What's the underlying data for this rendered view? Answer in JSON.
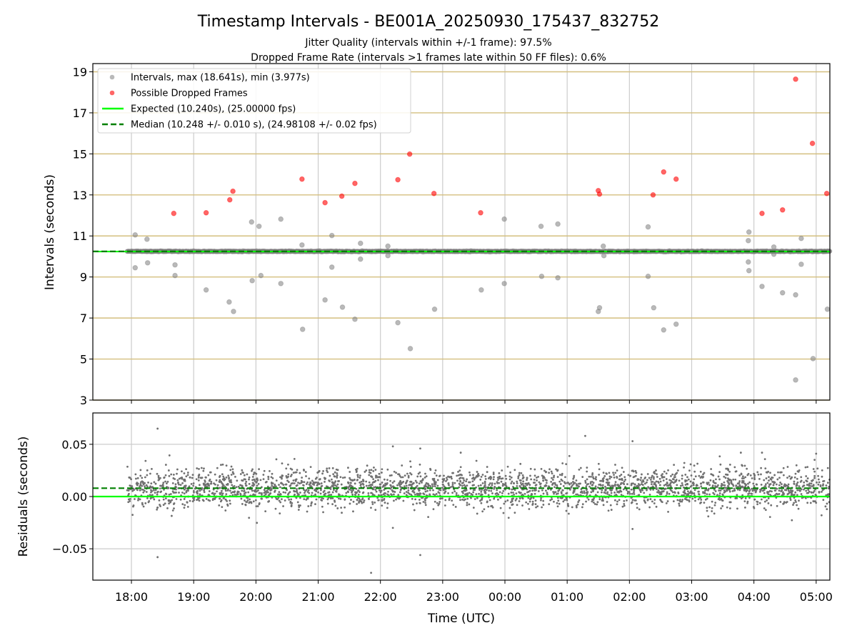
{
  "chart_data": [
    {
      "type": "scatter",
      "title": "Timestamp Intervals - BE001A_20250930_175437_832752",
      "subtitle_lines": [
        "Jitter Quality (intervals within +/-1 frame): 97.5%",
        "Dropped Frame Rate (intervals >1 frames late within 50 FF files): 0.6%"
      ],
      "xlabel": "",
      "ylabel": "Intervals (seconds)",
      "x_units": "hours since 18:00 UTC",
      "xlim": [
        -0.62,
        11.22
      ],
      "ylim": [
        3,
        19.4
      ],
      "yticks": [
        3,
        5,
        7,
        9,
        11,
        13,
        15,
        17,
        19
      ],
      "xticks": [
        0,
        1,
        2,
        3,
        4,
        5,
        6,
        7,
        8,
        9,
        10,
        11
      ],
      "xtick_labels": [
        "18:00",
        "19:00",
        "20:00",
        "21:00",
        "22:00",
        "23:00",
        "00:00",
        "01:00",
        "02:00",
        "03:00",
        "04:00",
        "05:00"
      ],
      "grid": true,
      "legend_position": "top-left",
      "legend": [
        "Intervals, max (18.641s), min (3.977s)",
        "Possible Dropped Frames",
        "Expected (10.240s), (25.00000 fps)",
        "Median (10.248 +/- 0.010 s), (24.98108 +/- 0.02 fps)"
      ],
      "expected": 10.24,
      "median": 10.248,
      "colors": {
        "intervals": "#808080",
        "dropped": "#ff0000",
        "expected": "#00ff00",
        "median": "#008000",
        "hgrid": "#d4bf7f",
        "vgrid": "#cccccc"
      },
      "dense_band": {
        "x_start": -0.07,
        "x_end": 11.22,
        "center": 10.248,
        "spread": 0.012,
        "count": 2200
      },
      "dropped_frames": [
        [
          0.68,
          12.1
        ],
        [
          1.2,
          12.13
        ],
        [
          1.58,
          12.76
        ],
        [
          1.63,
          13.18
        ],
        [
          2.74,
          13.77
        ],
        [
          3.11,
          12.62
        ],
        [
          3.38,
          12.94
        ],
        [
          3.59,
          13.56
        ],
        [
          4.28,
          13.74
        ],
        [
          4.47,
          14.99
        ],
        [
          4.86,
          13.07
        ],
        [
          5.61,
          12.13
        ],
        [
          7.5,
          13.21
        ],
        [
          7.52,
          13.04
        ],
        [
          8.38,
          13.0
        ],
        [
          8.55,
          14.12
        ],
        [
          8.75,
          13.77
        ],
        [
          10.13,
          12.1
        ],
        [
          10.46,
          12.27
        ],
        [
          10.67,
          18.64
        ],
        [
          10.94,
          15.51
        ],
        [
          11.17,
          13.07
        ]
      ],
      "interval_outliers": [
        [
          0.06,
          11.05
        ],
        [
          0.06,
          9.45
        ],
        [
          0.25,
          10.84
        ],
        [
          0.26,
          9.69
        ],
        [
          0.7,
          9.59
        ],
        [
          0.7,
          9.07
        ],
        [
          1.2,
          8.37
        ],
        [
          1.57,
          7.78
        ],
        [
          1.64,
          7.32
        ],
        [
          1.93,
          11.68
        ],
        [
          1.94,
          8.82
        ],
        [
          2.05,
          11.47
        ],
        [
          2.08,
          9.07
        ],
        [
          2.4,
          11.82
        ],
        [
          2.4,
          8.68
        ],
        [
          2.74,
          10.56
        ],
        [
          2.75,
          6.45
        ],
        [
          3.11,
          7.88
        ],
        [
          3.22,
          11.02
        ],
        [
          3.22,
          9.48
        ],
        [
          3.39,
          7.53
        ],
        [
          3.59,
          6.94
        ],
        [
          3.68,
          10.64
        ],
        [
          3.68,
          9.87
        ],
        [
          4.12,
          10.5
        ],
        [
          4.12,
          10.04
        ],
        [
          4.28,
          6.77
        ],
        [
          4.48,
          5.51
        ],
        [
          4.87,
          7.43
        ],
        [
          5.62,
          8.37
        ],
        [
          5.99,
          11.82
        ],
        [
          5.99,
          8.68
        ],
        [
          6.58,
          11.47
        ],
        [
          6.59,
          9.03
        ],
        [
          6.85,
          11.58
        ],
        [
          6.85,
          8.96
        ],
        [
          7.5,
          7.32
        ],
        [
          7.52,
          7.5
        ],
        [
          7.58,
          10.5
        ],
        [
          7.59,
          10.04
        ],
        [
          8.3,
          11.44
        ],
        [
          8.3,
          9.03
        ],
        [
          8.39,
          7.5
        ],
        [
          8.55,
          6.42
        ],
        [
          8.75,
          6.7
        ],
        [
          9.91,
          10.77
        ],
        [
          9.92,
          11.19
        ],
        [
          9.91,
          9.73
        ],
        [
          9.92,
          9.31
        ],
        [
          10.13,
          8.54
        ],
        [
          10.32,
          10.46
        ],
        [
          10.32,
          10.11
        ],
        [
          10.46,
          8.23
        ],
        [
          10.67,
          8.13
        ],
        [
          10.67,
          3.98
        ],
        [
          10.76,
          10.88
        ],
        [
          10.76,
          9.62
        ],
        [
          10.95,
          5.02
        ],
        [
          11.18,
          7.43
        ]
      ]
    },
    {
      "type": "scatter",
      "xlabel": "Time (UTC)",
      "ylabel": "Residuals (seconds)",
      "x_units": "hours since 18:00 UTC",
      "xlim": [
        -0.62,
        11.22
      ],
      "ylim": [
        -0.08,
        0.08
      ],
      "yticks": [
        -0.05,
        0.0,
        0.05
      ],
      "ytick_labels": [
        "−0.05",
        "0.00",
        "0.05"
      ],
      "xticks": [
        0,
        1,
        2,
        3,
        4,
        5,
        6,
        7,
        8,
        9,
        10,
        11
      ],
      "xtick_labels": [
        "18:00",
        "19:00",
        "20:00",
        "21:00",
        "22:00",
        "23:00",
        "00:00",
        "01:00",
        "02:00",
        "03:00",
        "04:00",
        "05:00"
      ],
      "grid": true,
      "expected_residual": 0.0,
      "median_residual": 0.008,
      "residual_scatter": {
        "x_start": -0.07,
        "x_end": 11.22,
        "mean": 0.008,
        "std": 0.0095,
        "count": 3000
      },
      "residual_outliers": [
        [
          0.42,
          0.065
        ],
        [
          0.42,
          -0.058
        ],
        [
          4.2,
          0.048
        ],
        [
          4.2,
          -0.03
        ],
        [
          4.64,
          0.046
        ],
        [
          4.64,
          -0.056
        ],
        [
          3.85,
          -0.073
        ],
        [
          7.29,
          0.058
        ],
        [
          8.05,
          0.053
        ],
        [
          8.05,
          -0.031
        ],
        [
          5.29,
          0.042
        ],
        [
          10.13,
          0.042
        ],
        [
          9.79,
          0.042
        ]
      ]
    }
  ]
}
